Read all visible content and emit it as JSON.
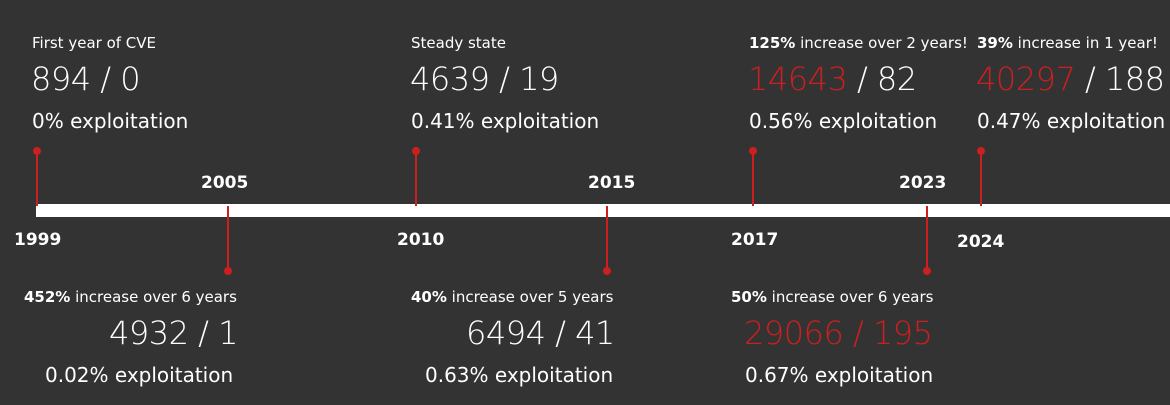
{
  "colors": {
    "background": "#333333",
    "accent": "#cc1f1f",
    "bar": "#ffffff",
    "text": "#ffffff"
  },
  "timeline": {
    "years": {
      "y1999": "1999",
      "y2005": "2005",
      "y2010": "2010",
      "y2015": "2015",
      "y2017": "2017",
      "y2023": "2023",
      "y2024": "2024"
    },
    "top": {
      "e1999": {
        "caption": "First year of CVE",
        "cves": "894",
        "sep": " / ",
        "exploited": "0",
        "rate": "0% exploitation"
      },
      "e2010": {
        "caption": "Steady state",
        "cves": "4639",
        "sep": " / ",
        "exploited": "19",
        "rate": "0.41% exploitation"
      },
      "e2017": {
        "caption_pct": "125%",
        "caption_rest": " increase over 2 years!",
        "cves": "14643",
        "sep": " / ",
        "exploited": "82",
        "rate": "0.56% exploitation"
      },
      "e2024": {
        "caption_pct": "39%",
        "caption_rest": " increase in 1 year!",
        "cves": "40297",
        "sep": " / ",
        "exploited": "188",
        "rate": "0.47% exploitation"
      }
    },
    "bottom": {
      "e2005": {
        "caption_pct": "452%",
        "caption_rest": " increase over 6 years",
        "cves": "4932",
        "sep": " / ",
        "exploited": "1",
        "rate": "0.02% exploitation"
      },
      "e2015": {
        "caption_pct": "40%",
        "caption_rest": " increase over 5 years",
        "cves": "6494",
        "sep": " / ",
        "exploited": "41",
        "rate": "0.63% exploitation"
      },
      "e2023": {
        "caption_pct": "50%",
        "caption_rest": " increase over 6 years",
        "counts": "29066 / 195",
        "rate": "0.67% exploitation"
      }
    }
  }
}
